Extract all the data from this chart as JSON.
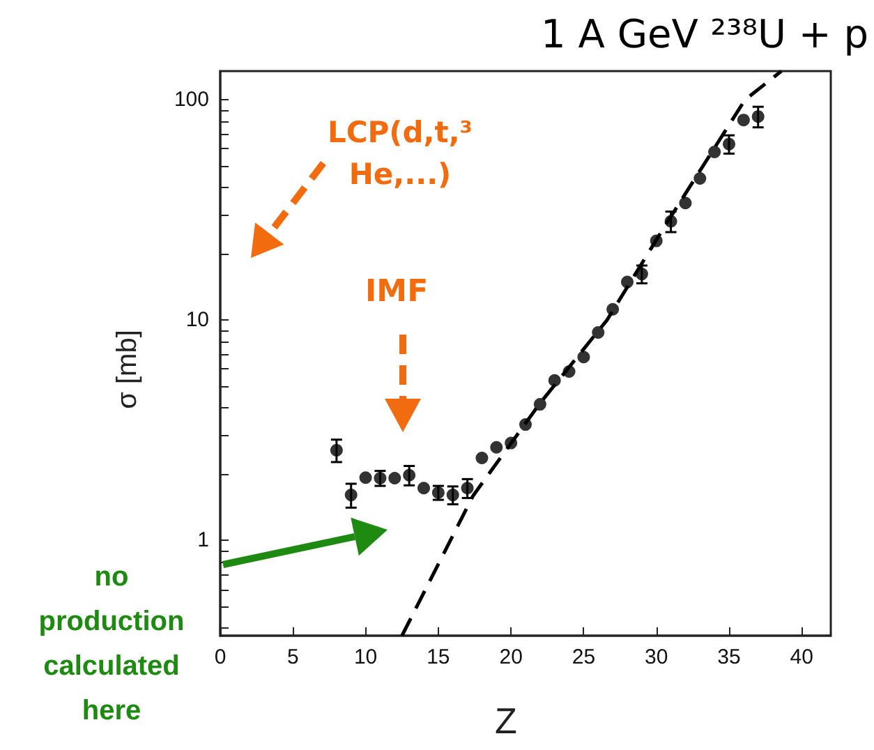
{
  "chart_data": {
    "type": "scatter",
    "title": "1 A GeV ²³⁸U + p",
    "xlabel": "Z",
    "ylabel": "σ [mb]",
    "annotations": [
      "LCP(d,t,³He,...)",
      "IMF",
      "no production calculated here"
    ],
    "log": "y",
    "xlim": [
      0,
      42
    ],
    "xticks": [
      0,
      5,
      10,
      15,
      20,
      25,
      30,
      35,
      40
    ],
    "ylim": [
      0.37,
      135
    ],
    "yticks": [
      {
        "value": 0.4,
        "label": null
      },
      {
        "value": 0.5,
        "label": null
      },
      {
        "value": 0.6,
        "label": null
      },
      {
        "value": 0.7,
        "label": null
      },
      {
        "value": 0.8,
        "label": null
      },
      {
        "value": 0.9,
        "label": null
      },
      1,
      {
        "value": 2,
        "label": null
      },
      {
        "value": 3,
        "label": null
      },
      {
        "value": 4,
        "label": null
      },
      {
        "value": 5,
        "label": null
      },
      {
        "value": 6,
        "label": null
      },
      {
        "value": 7,
        "label": null
      },
      {
        "value": 8,
        "label": null
      },
      {
        "value": 9,
        "label": null
      },
      10,
      {
        "value": 20,
        "label": null
      },
      {
        "value": 30,
        "label": null
      },
      {
        "value": 40,
        "label": null
      },
      {
        "value": 50,
        "label": null
      },
      {
        "value": 60,
        "label": null
      },
      {
        "value": 70,
        "label": null
      },
      {
        "value": 80,
        "label": null
      },
      {
        "value": 90,
        "label": null
      },
      100
    ],
    "grid": false,
    "marker": "circle",
    "series": [
      {
        "color": "#000000",
        "x": [
          8,
          9,
          10,
          11,
          12,
          13,
          14,
          15,
          16,
          17,
          18,
          19,
          20,
          21,
          22,
          23,
          24,
          25,
          26,
          27,
          28,
          29,
          30,
          31,
          32,
          33,
          34,
          35,
          36,
          37
        ],
        "values": [
          2.57,
          1.61,
          1.93,
          1.92,
          1.92,
          1.98,
          1.73,
          1.65,
          1.61,
          1.73,
          2.37,
          2.65,
          2.77,
          3.36,
          4.15,
          5.33,
          5.85,
          6.8,
          8.8,
          11.2,
          14.9,
          16.2,
          22.9,
          28.1,
          34,
          44,
          58,
          63,
          81,
          84
        ],
        "errors": [
          0.3,
          0.2,
          null,
          0.15,
          null,
          0.2,
          null,
          0.12,
          0.15,
          0.17,
          null,
          null,
          null,
          null,
          null,
          null,
          null,
          null,
          null,
          null,
          null,
          1.5,
          null,
          3,
          null,
          null,
          null,
          6,
          null,
          9
        ]
      },
      {
        "type": "line",
        "color": "#000000",
        "line_style": "dashed",
        "marker": "none",
        "x": [
          12.5,
          17.4,
          22,
          26.6,
          30.7,
          36.1,
          38.6
        ],
        "values": [
          0.37,
          1.6,
          4.2,
          10,
          27.5,
          100,
          135
        ]
      }
    ]
  }
}
